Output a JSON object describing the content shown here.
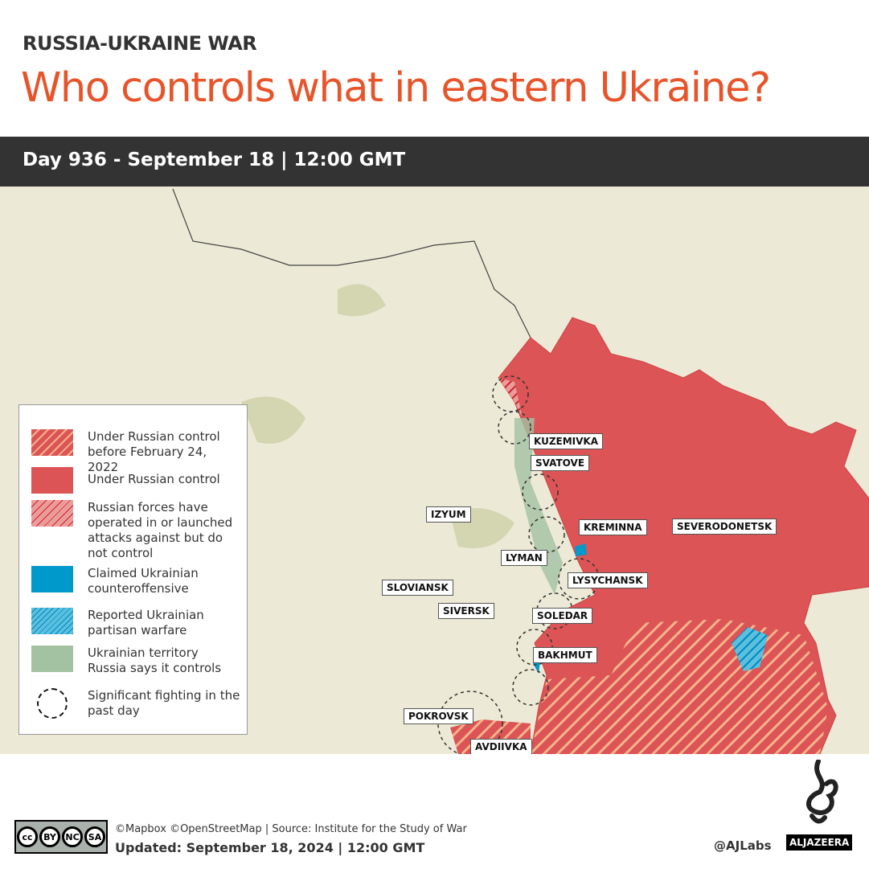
{
  "header": {
    "kicker": "RUSSIA-UKRAINE WAR",
    "title": "Who controls what in eastern Ukraine?",
    "date_bar": "Day 936 - September 18  |  12:00 GMT"
  },
  "map": {
    "labels": [
      "KUZEMIVKA",
      "SVATOVE",
      "IZYUM",
      "KREMINNA",
      "SEVERODONETSK",
      "LYMAN",
      "LYSYCHANSK",
      "SLOVIANSK",
      "SIVERSK",
      "SOLEDAR",
      "BAKHMUT",
      "POKROVSK",
      "AVDIIVKA"
    ],
    "colors": {
      "russian_control": "#dc5456",
      "pre_2022_hatch": "#f4b48a",
      "ukraine_counter": "#0099cc",
      "russia_claims": "#a3c2a2",
      "land": "#ece9d6"
    }
  },
  "legend": {
    "items": [
      {
        "label": "Under Russian control before February 24, 2022"
      },
      {
        "label": "Under Russian control"
      },
      {
        "label": "Russian forces have operated in or launched attacks against but do not control"
      },
      {
        "label": "Claimed Ukrainian counteroffensive"
      },
      {
        "label": "Reported Ukrainian partisan warfare"
      },
      {
        "label": "Ukrainian territory Russia says it controls"
      },
      {
        "label": "Significant fighting in the past day"
      }
    ]
  },
  "footer": {
    "license": [
      "cc",
      "BY",
      "NC",
      "SA"
    ],
    "source": "©Mapbox ©OpenStreetMap | Source: Institute for the Study of War",
    "updated": "Updated: September 18, 2024  |  12:00 GMT",
    "handle": "@AJLabs",
    "logo": "ALJAZEERA"
  }
}
